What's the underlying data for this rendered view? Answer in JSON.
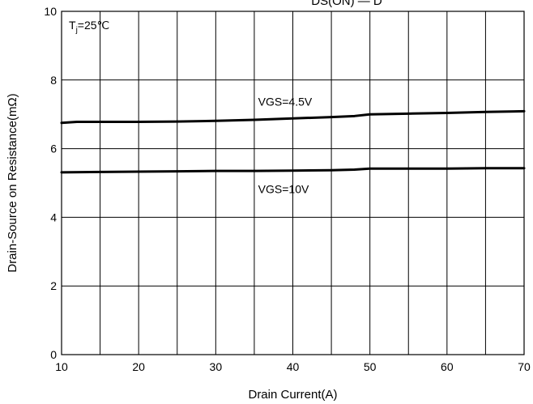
{
  "chart_data": {
    "type": "line",
    "title": "",
    "title_partial": "DS(ON) — D",
    "xlabel": "Drain Current(A)",
    "ylabel": "Drain-Source on Resistance(mΩ)",
    "xlim": [
      10,
      70
    ],
    "ylim": [
      0,
      10
    ],
    "x_ticks": [
      10,
      20,
      30,
      40,
      50,
      60,
      70
    ],
    "y_ticks": [
      0,
      2,
      4,
      6,
      8,
      10
    ],
    "grid": true,
    "annotations": {
      "condition_T": "T",
      "condition_sub": "j",
      "condition_rest": "=25℃"
    },
    "series": [
      {
        "label": "VGS=4.5V",
        "x": [
          10,
          12,
          15,
          20,
          25,
          30,
          35,
          40,
          45,
          48,
          50,
          55,
          60,
          65,
          70
        ],
        "y": [
          6.75,
          6.78,
          6.78,
          6.78,
          6.79,
          6.81,
          6.84,
          6.88,
          6.92,
          6.95,
          7.0,
          7.02,
          7.04,
          7.07,
          7.09
        ]
      },
      {
        "label": "VGS=10V",
        "x": [
          10,
          15,
          20,
          25,
          30,
          35,
          40,
          45,
          48,
          50,
          55,
          60,
          65,
          70
        ],
        "y": [
          5.31,
          5.32,
          5.33,
          5.34,
          5.35,
          5.35,
          5.36,
          5.37,
          5.39,
          5.42,
          5.42,
          5.42,
          5.43,
          5.43
        ]
      }
    ]
  }
}
